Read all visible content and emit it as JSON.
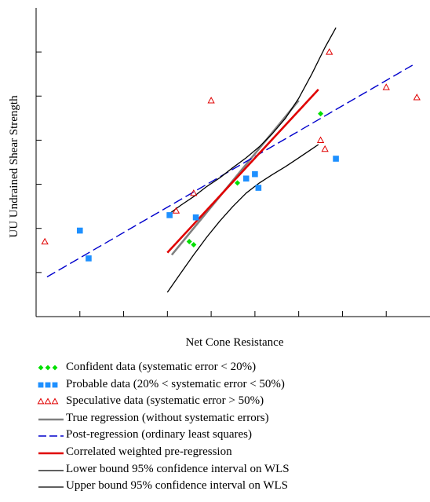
{
  "chart_data": {
    "type": "scatter",
    "xlabel": "Net Cone Resistance",
    "ylabel": "UU Undrained Shear Strength",
    "xlim": [
      0,
      9
    ],
    "ylim": [
      0,
      7
    ],
    "xticks": [
      1,
      2,
      3,
      4,
      5,
      6,
      7,
      8
    ],
    "yticks": [
      1,
      2,
      3,
      4,
      5,
      6
    ],
    "grid": false,
    "legend_position": "bottom",
    "colors": {
      "confident": "#00e000",
      "probable": "#1e90ff",
      "speculative": "#e00000",
      "true_regression": "#808080",
      "post_regression": "#0000cc",
      "weighted": "#e00000",
      "bounds": "#000000"
    },
    "series": [
      {
        "name": "Confident data (systematic error < 20%)",
        "kind": "points",
        "marker": "diamond",
        "color": "#00e000",
        "x": [
          3.5,
          3.6,
          4.6,
          6.5
        ],
        "y": [
          1.7,
          1.63,
          3.03,
          4.6
        ]
      },
      {
        "name": "Probable data (20% < systematic error < 50%)",
        "kind": "points",
        "marker": "square",
        "color": "#1e90ff",
        "x": [
          1.0,
          1.2,
          3.05,
          3.65,
          4.8,
          5.0,
          5.08,
          6.85
        ],
        "y": [
          1.95,
          1.32,
          2.3,
          2.25,
          3.13,
          3.23,
          2.92,
          3.58
        ]
      },
      {
        "name": "Speculative data (systematic error > 50%)",
        "kind": "points",
        "marker": "triangle",
        "color": "#e00000",
        "x": [
          0.2,
          3.2,
          3.6,
          4.0,
          6.5,
          6.6,
          6.7,
          8.0,
          8.7
        ],
        "y": [
          1.7,
          2.4,
          2.8,
          4.9,
          4.0,
          3.8,
          6.0,
          5.2,
          4.97
        ]
      },
      {
        "name": "True regression (without systematic errors)",
        "kind": "line",
        "color": "#808080",
        "x": [
          3.1,
          6.0
        ],
        "y": [
          1.4,
          4.9
        ]
      },
      {
        "name": "Post-regression (ordinary least squares)",
        "kind": "line",
        "dash": true,
        "color": "#0000cc",
        "x": [
          0.25,
          8.6
        ],
        "y": [
          0.9,
          5.7
        ]
      },
      {
        "name": "Correlated weighted pre-regression",
        "kind": "line",
        "color": "#e00000",
        "x": [
          3.0,
          6.45
        ],
        "y": [
          1.45,
          5.15
        ]
      },
      {
        "name": "Lower bound 95% confidence interval on WLS",
        "kind": "line",
        "color": "#000000",
        "x": [
          3.0,
          3.3,
          3.6,
          3.9,
          4.2,
          4.5,
          4.8,
          5.1,
          5.4,
          5.7,
          6.0,
          6.3,
          6.45
        ],
        "y": [
          0.55,
          0.98,
          1.4,
          1.8,
          2.17,
          2.5,
          2.8,
          3.03,
          3.22,
          3.4,
          3.6,
          3.8,
          3.9
        ]
      },
      {
        "name": "Upper bound 95% confidence interval on WLS",
        "kind": "line",
        "color": "#000000",
        "x": [
          3.0,
          3.3,
          3.6,
          3.9,
          4.2,
          4.5,
          4.8,
          5.1,
          5.4,
          5.7,
          6.0,
          6.3,
          6.6,
          6.85
        ],
        "y": [
          2.3,
          2.52,
          2.72,
          2.95,
          3.15,
          3.38,
          3.6,
          3.85,
          4.15,
          4.5,
          4.95,
          5.5,
          6.1,
          6.55
        ]
      }
    ]
  }
}
